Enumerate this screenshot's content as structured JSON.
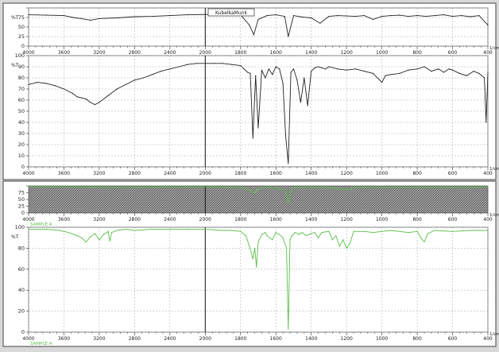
{
  "overlay_label": "KubelkaMunk",
  "x_unit": "1/cm",
  "chart_data": [
    {
      "id": "top-overview",
      "type": "line",
      "title": "",
      "xlabel": "1/cm",
      "ylabel": "%T",
      "xlim": [
        4000,
        400
      ],
      "ylim": [
        0,
        100
      ],
      "x_ticks": [
        4000,
        3600,
        3200,
        2800,
        2400,
        2000,
        1800,
        1600,
        1400,
        1200,
        1000,
        800,
        600,
        400
      ],
      "x_tick_labels": [
        "4000",
        "3600",
        "3200",
        "2800",
        "2400",
        "2000",
        "1800",
        "1600",
        "1400",
        "1200",
        "1000",
        "800",
        "600",
        "400"
      ],
      "y_ticks": [
        0,
        25,
        50,
        75,
        100
      ],
      "y_tick_labels": [
        "0",
        "25",
        "50",
        "75",
        ""
      ],
      "grid": true,
      "series": [
        {
          "color": "#222222",
          "x": [
            4000,
            3800,
            3600,
            3500,
            3400,
            3300,
            3200,
            3000,
            2800,
            2600,
            2400,
            2200,
            2000,
            1900,
            1800,
            1750,
            1725,
            1700,
            1650,
            1600,
            1550,
            1530,
            1500,
            1450,
            1400,
            1350,
            1300,
            1250,
            1200,
            1150,
            1100,
            1050,
            1000,
            950,
            900,
            850,
            800,
            750,
            700,
            650,
            600,
            550,
            500,
            450,
            400
          ],
          "y": [
            82,
            81,
            80,
            75,
            72,
            68,
            72,
            74,
            77,
            78,
            80,
            82,
            83,
            83,
            82,
            55,
            30,
            70,
            80,
            82,
            78,
            25,
            80,
            76,
            74,
            60,
            78,
            80,
            79,
            78,
            80,
            70,
            78,
            80,
            81,
            78,
            80,
            78,
            80,
            82,
            78,
            80,
            77,
            80,
            55
          ]
        }
      ]
    },
    {
      "id": "top-main",
      "type": "line",
      "title": "",
      "xlabel": "1/cm",
      "ylabel": "%T",
      "xlim": [
        4000,
        400
      ],
      "ylim": [
        0,
        100
      ],
      "x_ticks": [
        4000,
        3600,
        3200,
        2800,
        2400,
        2000,
        1800,
        1600,
        1400,
        1200,
        1000,
        800,
        600,
        400
      ],
      "x_tick_labels": [
        "4000",
        "3600",
        "3200",
        "2800",
        "2400",
        "2000",
        "1800",
        "1600",
        "1400",
        "1200",
        "1000",
        "800",
        "600",
        "400"
      ],
      "y_ticks": [
        0,
        10,
        20,
        30,
        40,
        50,
        60,
        70,
        80,
        90,
        100
      ],
      "y_tick_labels": [
        "0",
        "10",
        "20",
        "30",
        "40",
        "50",
        "60",
        "70",
        "80",
        "90",
        "100"
      ],
      "grid": true,
      "series": [
        {
          "color": "#222222",
          "x": [
            4000,
            3900,
            3800,
            3700,
            3600,
            3500,
            3450,
            3400,
            3350,
            3300,
            3250,
            3200,
            3100,
            3000,
            2900,
            2800,
            2700,
            2600,
            2500,
            2400,
            2300,
            2200,
            2100,
            2000,
            1950,
            1900,
            1850,
            1800,
            1780,
            1760,
            1745,
            1730,
            1715,
            1700,
            1680,
            1660,
            1640,
            1620,
            1600,
            1580,
            1560,
            1545,
            1530,
            1515,
            1500,
            1480,
            1460,
            1440,
            1420,
            1400,
            1380,
            1360,
            1340,
            1320,
            1300,
            1250,
            1200,
            1150,
            1100,
            1050,
            1000,
            980,
            950,
            900,
            850,
            800,
            760,
            720,
            680,
            650,
            620,
            600,
            560,
            520,
            480,
            450,
            420,
            410,
            400
          ],
          "y": [
            74,
            76,
            75,
            73,
            70,
            66,
            63,
            62,
            61,
            58,
            56,
            58,
            64,
            70,
            74,
            78,
            80,
            83,
            86,
            88,
            90,
            92,
            93,
            93,
            93,
            93,
            92,
            91,
            88,
            85,
            84,
            26,
            82,
            35,
            87,
            80,
            88,
            83,
            90,
            88,
            75,
            28,
            3,
            85,
            88,
            78,
            58,
            80,
            55,
            86,
            89,
            90,
            89,
            88,
            90,
            88,
            87,
            88,
            86,
            84,
            76,
            82,
            83,
            84,
            87,
            88,
            90,
            86,
            88,
            85,
            88,
            87,
            84,
            82,
            86,
            84,
            80,
            40,
            85
          ]
        }
      ]
    },
    {
      "id": "bottom-overview",
      "type": "line",
      "title": "",
      "xlabel": "1/cm",
      "ylabel": "",
      "xlim": [
        4000,
        400
      ],
      "ylim": [
        0,
        100
      ],
      "x_ticks": [
        4000,
        3600,
        3200,
        2800,
        2400,
        2000,
        1800,
        1600,
        1400,
        1200,
        1000,
        800,
        600,
        400
      ],
      "x_tick_labels": [
        "4000",
        "3600",
        "3200",
        "2800",
        "2400",
        "2000",
        "1800",
        "1600",
        "1400",
        "1200",
        "1000",
        "800",
        "600",
        "400"
      ],
      "y_ticks": [
        0,
        25,
        50,
        75,
        100
      ],
      "y_tick_labels": [
        "0",
        "25",
        "50",
        "75",
        ""
      ],
      "grid": false,
      "series": [
        {
          "name": "SAMPLE A",
          "color": "#5cbf4a",
          "x": [
            4000,
            3500,
            3000,
            2500,
            2000,
            1800,
            1750,
            1720,
            1700,
            1650,
            1600,
            1550,
            1530,
            1510,
            1450,
            1300,
            1200,
            1150,
            1000,
            800,
            600,
            400
          ],
          "y": [
            98,
            97,
            96,
            97,
            97,
            96,
            85,
            75,
            90,
            95,
            94,
            85,
            40,
            92,
            95,
            94,
            85,
            95,
            96,
            96,
            95,
            97
          ]
        }
      ]
    },
    {
      "id": "bottom-main",
      "type": "line",
      "title": "",
      "xlabel": "1/cm",
      "ylabel": "%T",
      "xlim": [
        4000,
        400
      ],
      "ylim": [
        0,
        100
      ],
      "x_ticks": [
        4000,
        3600,
        3200,
        2800,
        2400,
        2000,
        1800,
        1600,
        1400,
        1200,
        1000,
        800,
        600,
        400
      ],
      "x_tick_labels": [
        "4000",
        "3600",
        "3200",
        "2800",
        "2400",
        "2000",
        "1800",
        "1600",
        "1400",
        "1200",
        "1000",
        "800",
        "600",
        "400"
      ],
      "y_ticks": [
        0,
        20,
        40,
        60,
        80,
        100
      ],
      "y_tick_labels": [
        "0",
        "20",
        "40",
        "60",
        "80",
        "100"
      ],
      "grid": true,
      "series": [
        {
          "name": "SAMPLE A",
          "color": "#5cbf4a",
          "x": [
            4000,
            3800,
            3650,
            3550,
            3450,
            3400,
            3350,
            3300,
            3250,
            3200,
            3150,
            3100,
            3080,
            3060,
            3000,
            2900,
            2800,
            2600,
            2400,
            2200,
            2000,
            1900,
            1850,
            1800,
            1770,
            1750,
            1730,
            1720,
            1710,
            1700,
            1680,
            1660,
            1650,
            1620,
            1600,
            1580,
            1560,
            1540,
            1530,
            1520,
            1510,
            1490,
            1470,
            1450,
            1430,
            1400,
            1380,
            1360,
            1340,
            1300,
            1280,
            1260,
            1240,
            1220,
            1200,
            1180,
            1160,
            1100,
            1050,
            1000,
            950,
            900,
            850,
            800,
            780,
            760,
            740,
            700,
            600,
            500,
            400
          ],
          "y": [
            98,
            98,
            97,
            95,
            92,
            90,
            86,
            91,
            94,
            88,
            93,
            96,
            87,
            95,
            97,
            98,
            97,
            98,
            98,
            98,
            98,
            97,
            97,
            96,
            92,
            82,
            70,
            80,
            62,
            86,
            93,
            95,
            92,
            88,
            95,
            93,
            90,
            80,
            3,
            88,
            92,
            95,
            93,
            95,
            92,
            94,
            95,
            90,
            95,
            96,
            88,
            92,
            82,
            88,
            80,
            85,
            96,
            96,
            95,
            96,
            97,
            96,
            95,
            96,
            90,
            86,
            94,
            97,
            96,
            97,
            97
          ]
        }
      ]
    }
  ]
}
